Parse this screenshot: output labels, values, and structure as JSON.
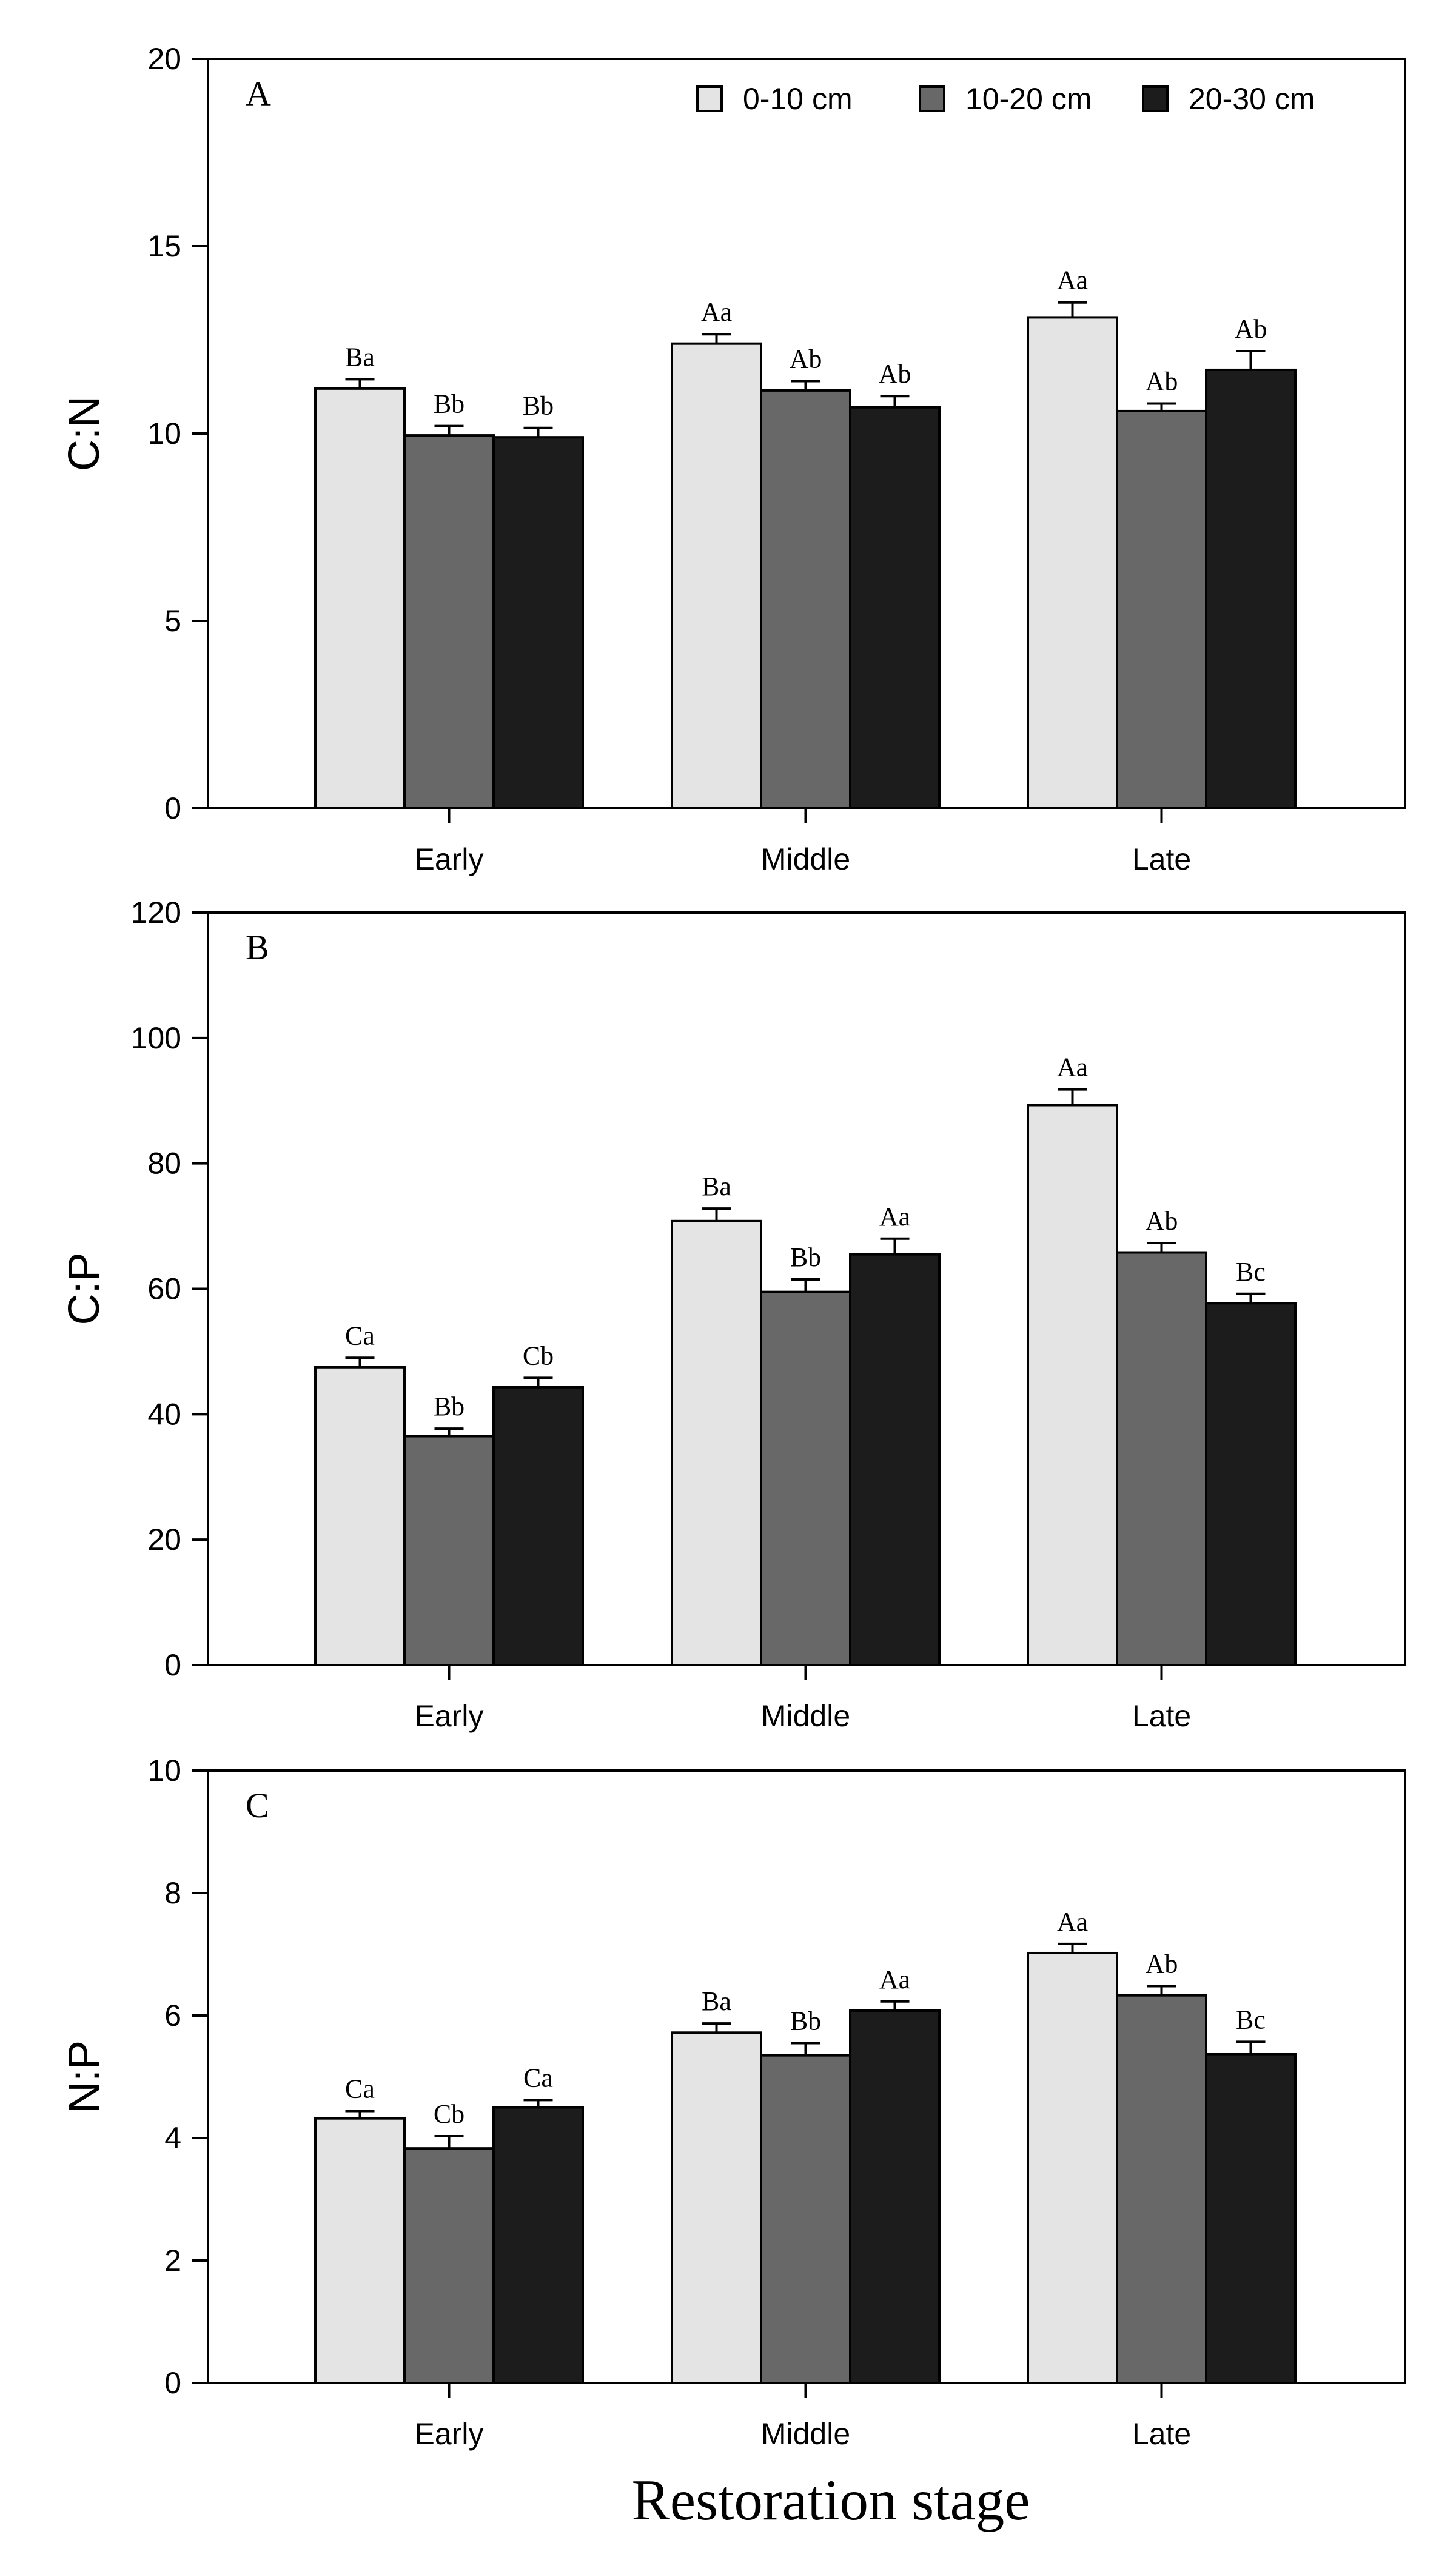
{
  "figure": {
    "xlabel": "Restoration stage"
  },
  "legend": [
    {
      "label": "0-10 cm",
      "color": "#e4e4e4"
    },
    {
      "label": "10-20 cm",
      "color": "#686868"
    },
    {
      "label": "20-30 cm",
      "color": "#1c1c1c"
    }
  ],
  "chart_data": [
    {
      "type": "bar",
      "panel": "A",
      "ylabel": "C:N",
      "ylim": [
        0,
        20
      ],
      "yticks": [
        0,
        5,
        10,
        15,
        20
      ],
      "categories": [
        "Early",
        "Middle",
        "Late"
      ],
      "series": [
        {
          "name": "0-10 cm",
          "values": [
            11.2,
            12.4,
            13.1
          ],
          "errors": [
            0.25,
            0.25,
            0.4
          ],
          "labels": [
            "Ba",
            "Aa",
            "Aa"
          ]
        },
        {
          "name": "10-20 cm",
          "values": [
            9.95,
            11.15,
            10.6
          ],
          "errors": [
            0.25,
            0.25,
            0.2
          ],
          "labels": [
            "Bb",
            "Ab",
            "Ab"
          ]
        },
        {
          "name": "20-30 cm",
          "values": [
            9.9,
            10.7,
            11.7
          ],
          "errors": [
            0.25,
            0.3,
            0.5
          ],
          "labels": [
            "Bb",
            "Ab",
            "Ab"
          ]
        }
      ]
    },
    {
      "type": "bar",
      "panel": "B",
      "ylabel": "C:P",
      "ylim": [
        0,
        120
      ],
      "yticks": [
        0,
        20,
        40,
        60,
        80,
        100,
        120
      ],
      "categories": [
        "Early",
        "Middle",
        "Late"
      ],
      "series": [
        {
          "name": "0-10 cm",
          "values": [
            47.5,
            70.8,
            89.3
          ],
          "errors": [
            1.5,
            2.0,
            2.5
          ],
          "labels": [
            "Ca",
            "Ba",
            "Aa"
          ]
        },
        {
          "name": "10-20 cm",
          "values": [
            36.5,
            59.5,
            65.8
          ],
          "errors": [
            1.2,
            2.0,
            1.5
          ],
          "labels": [
            "Bb",
            "Bb",
            "Ab"
          ]
        },
        {
          "name": "20-30 cm",
          "values": [
            44.3,
            65.5,
            57.7
          ],
          "errors": [
            1.5,
            2.5,
            1.5
          ],
          "labels": [
            "Cb",
            "Aa",
            "Bc"
          ]
        }
      ]
    },
    {
      "type": "bar",
      "panel": "C",
      "ylabel": "N:P",
      "ylim": [
        0,
        10
      ],
      "yticks": [
        0,
        2,
        4,
        6,
        8,
        10
      ],
      "categories": [
        "Early",
        "Middle",
        "Late"
      ],
      "series": [
        {
          "name": "0-10 cm",
          "values": [
            4.32,
            5.72,
            7.02
          ],
          "errors": [
            0.12,
            0.15,
            0.15
          ],
          "labels": [
            "Ca",
            "Ba",
            "Aa"
          ]
        },
        {
          "name": "10-20 cm",
          "values": [
            3.83,
            5.35,
            6.33
          ],
          "errors": [
            0.2,
            0.2,
            0.15
          ],
          "labels": [
            "Cb",
            "Bb",
            "Ab"
          ]
        },
        {
          "name": "20-30 cm",
          "values": [
            4.5,
            6.08,
            5.37
          ],
          "errors": [
            0.12,
            0.15,
            0.2
          ],
          "labels": [
            "Ca",
            "Aa",
            "Bc"
          ]
        }
      ]
    }
  ]
}
